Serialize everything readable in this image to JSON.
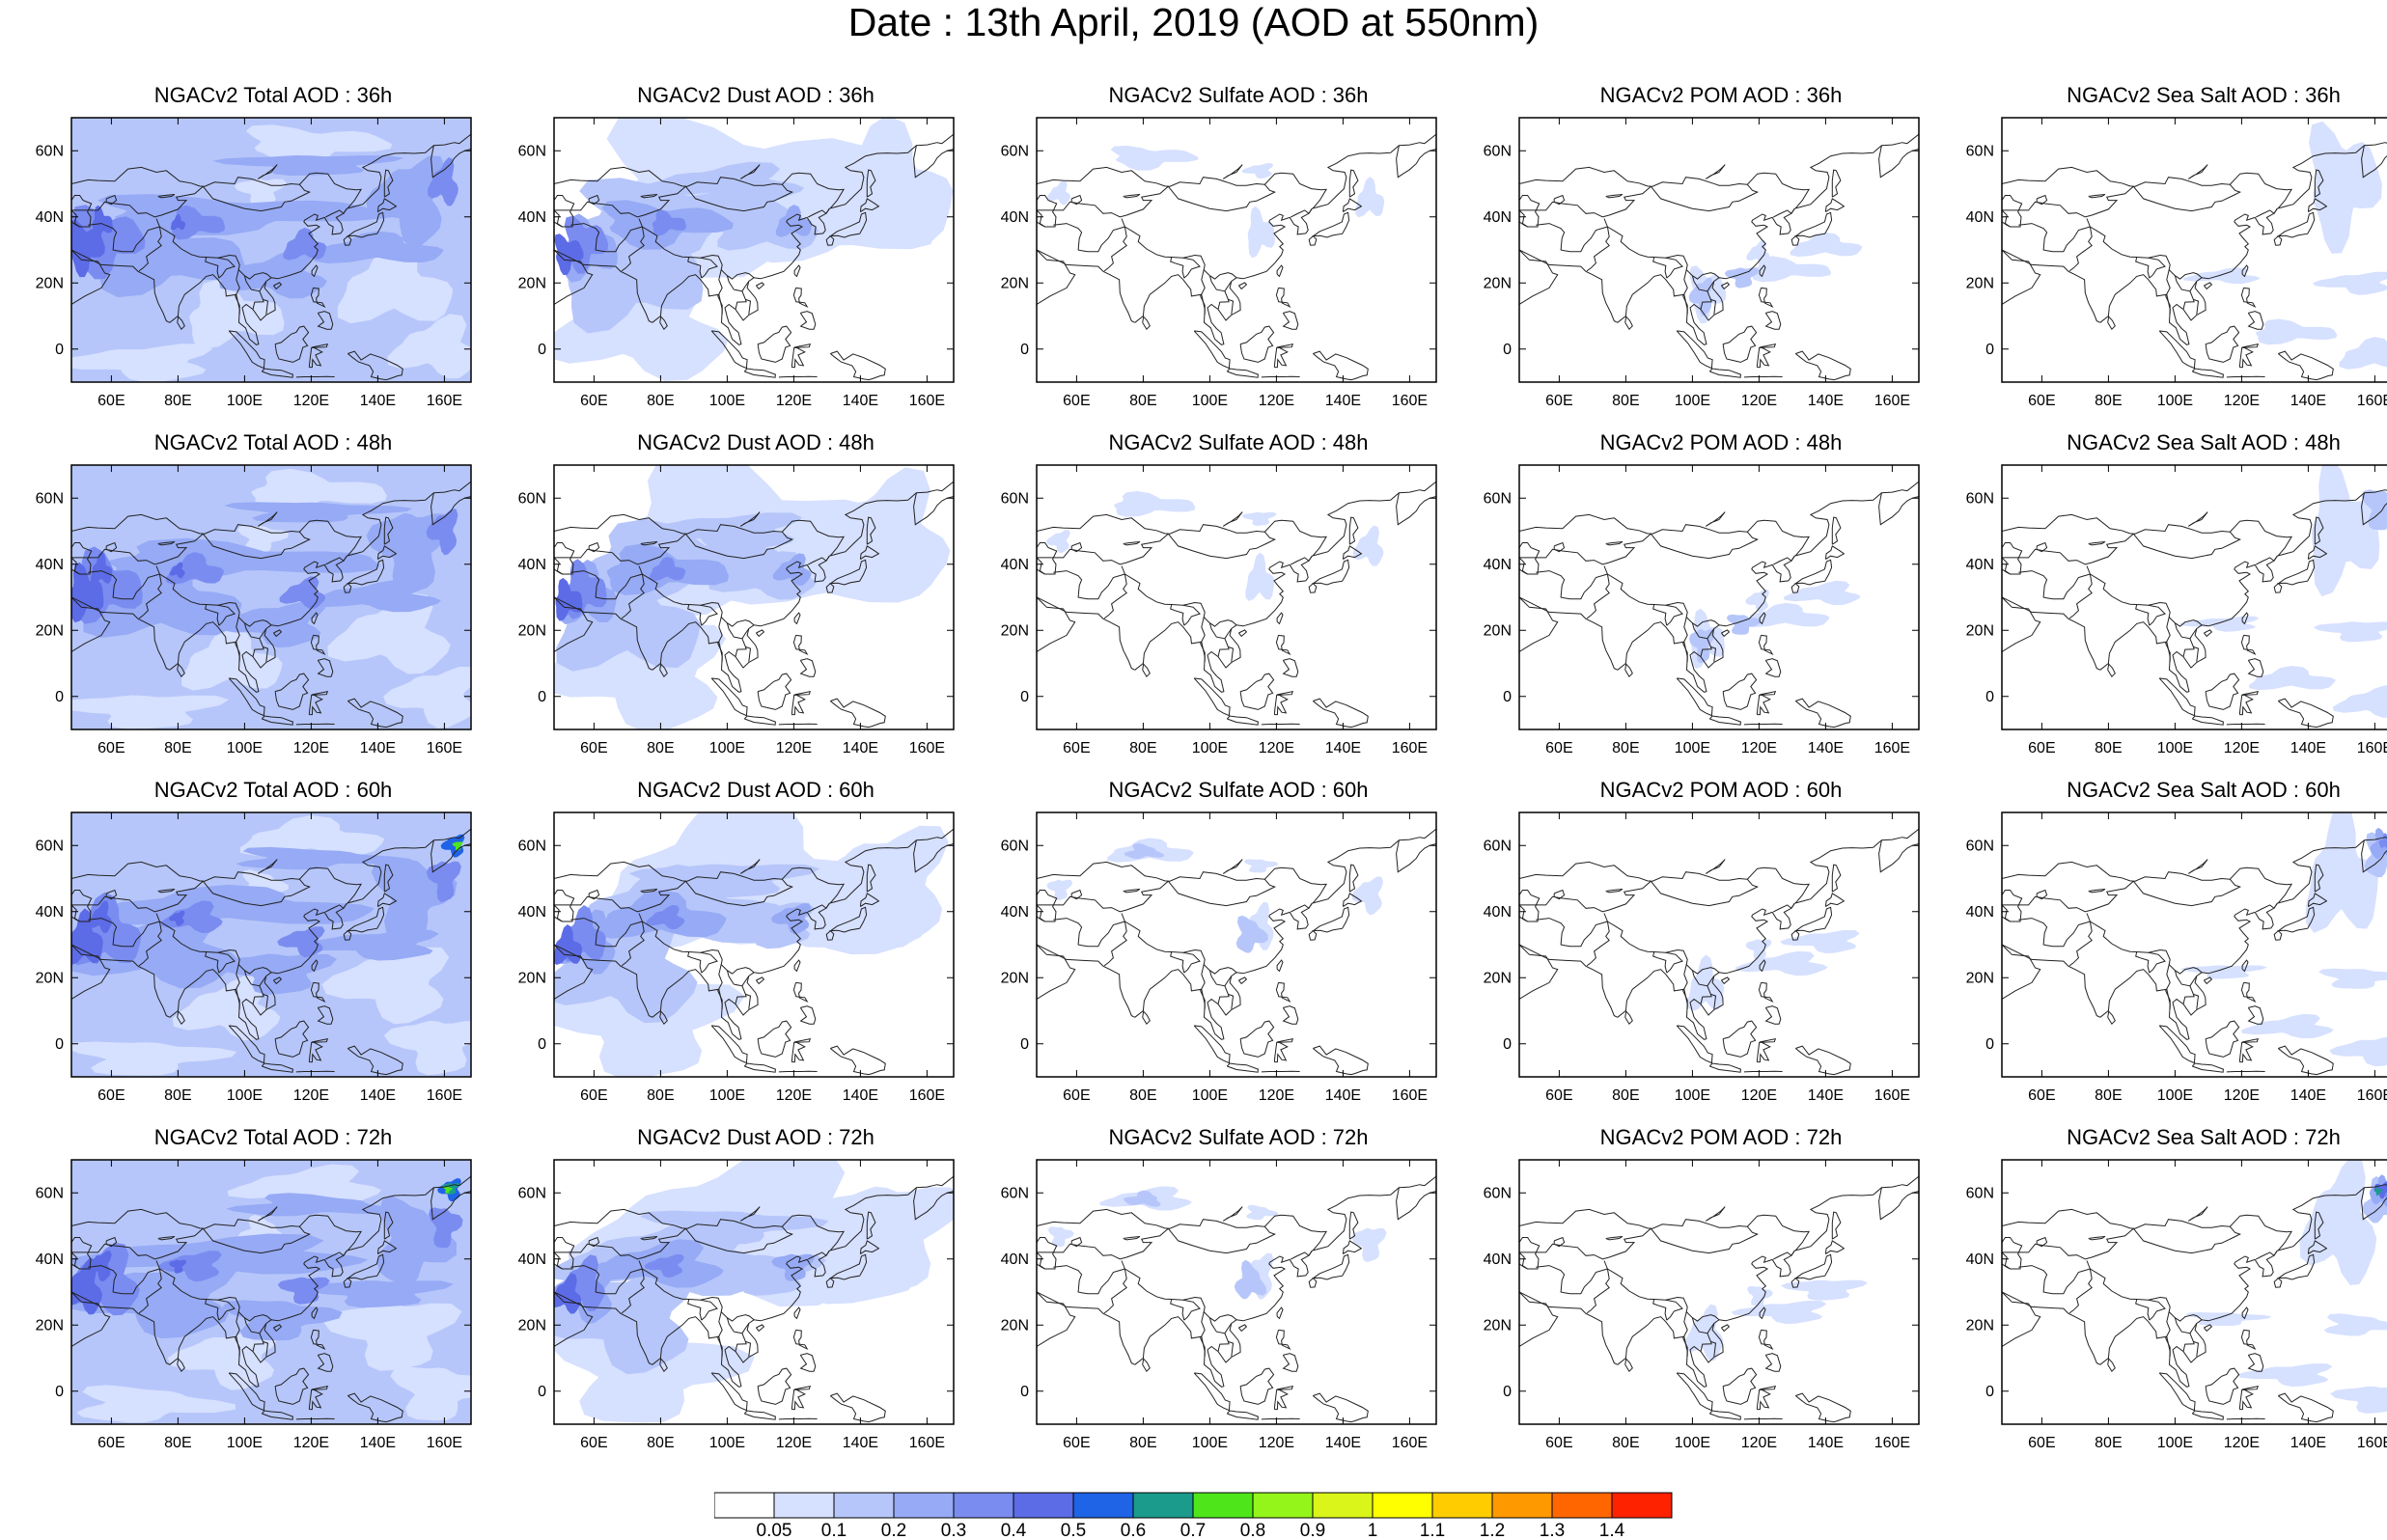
{
  "title": "Date : 13th April, 2019 (AOD at 550nm)",
  "panel_titles": [
    [
      "NGACv2 Total AOD : 36h",
      "NGACv2 Dust AOD : 36h",
      "NGACv2 Sulfate AOD : 36h",
      "NGACv2 POM AOD : 36h",
      "NGACv2 Sea Salt AOD : 36h"
    ],
    [
      "NGACv2 Total AOD : 48h",
      "NGACv2 Dust AOD : 48h",
      "NGACv2 Sulfate AOD : 48h",
      "NGACv2 POM AOD : 48h",
      "NGACv2 Sea Salt AOD : 48h"
    ],
    [
      "NGACv2 Total AOD : 60h",
      "NGACv2 Dust AOD : 60h",
      "NGACv2 Sulfate AOD : 60h",
      "NGACv2 POM AOD : 60h",
      "NGACv2 Sea Salt AOD : 60h"
    ],
    [
      "NGACv2 Total AOD : 72h",
      "NGACv2 Dust AOD : 72h",
      "NGACv2 Sulfate AOD : 72h",
      "NGACv2 POM AOD : 72h",
      "NGACv2 Sea Salt  AOD : 72h"
    ]
  ],
  "axes": {
    "x_ticks": [
      "60E",
      "80E",
      "100E",
      "120E",
      "140E",
      "160E"
    ],
    "x_values": [
      60,
      80,
      100,
      120,
      140,
      160
    ],
    "y_ticks": [
      "60N",
      "40N",
      "20N",
      "0"
    ],
    "y_values": [
      60,
      40,
      20,
      0
    ],
    "lon_range": [
      48,
      168
    ],
    "lat_range": [
      -10,
      70
    ]
  },
  "colorbar": {
    "labels": [
      "0.05",
      "0.1",
      "0.2",
      "0.3",
      "0.4",
      "0.5",
      "0.6",
      "0.7",
      "0.8",
      "0.9",
      "1",
      "1.1",
      "1.2",
      "1.3",
      "1.4"
    ],
    "colors": [
      "#ffffff",
      "#d6e0ff",
      "#b6c6fa",
      "#96aaf5",
      "#7a8cf0",
      "#5c6be6",
      "#1f63e6",
      "#1a9b8c",
      "#4ee61a",
      "#94f51a",
      "#d9f51a",
      "#ffff00",
      "#ffcc00",
      "#ff9900",
      "#ff6600",
      "#ff2200"
    ]
  },
  "map_colors": {
    "c1": "#d6e0ff",
    "c2": "#b6c6fa",
    "c3": "#96aaf5",
    "c4": "#7a8cf0",
    "c5": "#5c6be6",
    "c6": "#1f63e6",
    "c7": "#1a9b8c",
    "c8": "#4ee61a",
    "coast": "#222222"
  }
}
